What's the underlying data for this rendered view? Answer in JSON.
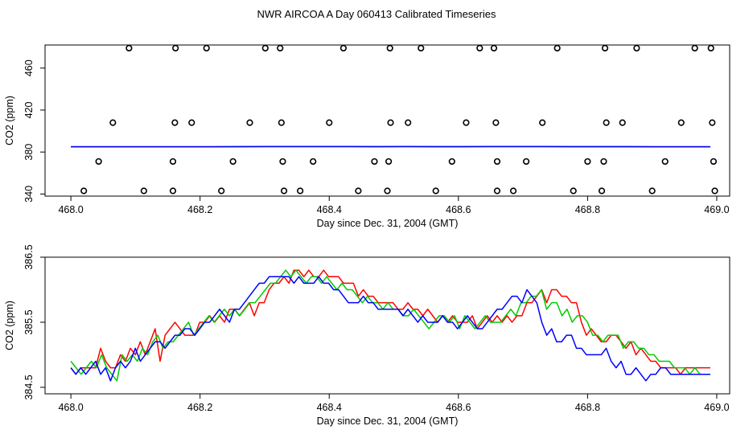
{
  "title": "NWR AIRCOA A  Day 060413  Calibrated Timeseries",
  "chart_data": [
    {
      "type": "scatter",
      "xlabel": "Day since Dec. 31, 2004 (GMT)",
      "ylabel": "CO2 (ppm)",
      "xlim": [
        467.96,
        469.02
      ],
      "ylim": [
        338,
        482
      ],
      "xticks": [
        468.0,
        468.2,
        468.4,
        468.6,
        468.8,
        469.0
      ],
      "xtick_labels": [
        "468.0",
        "468.2",
        "468.4",
        "468.6",
        "468.8",
        "469.0"
      ],
      "yticks": [
        340,
        380,
        420,
        460
      ],
      "ytick_labels": [
        "340",
        "380",
        "420",
        "460"
      ],
      "grid": false,
      "points": [
        [
          468.09,
          479
        ],
        [
          468.162,
          479
        ],
        [
          468.21,
          479
        ],
        [
          468.301,
          479
        ],
        [
          468.324,
          479
        ],
        [
          468.422,
          479
        ],
        [
          468.494,
          479
        ],
        [
          468.542,
          479
        ],
        [
          468.633,
          479
        ],
        [
          468.655,
          479
        ],
        [
          468.753,
          479
        ],
        [
          468.827,
          479
        ],
        [
          468.876,
          479
        ],
        [
          468.966,
          479
        ],
        [
          468.991,
          479
        ],
        [
          468.065,
          408
        ],
        [
          468.161,
          408
        ],
        [
          468.187,
          408
        ],
        [
          468.277,
          408
        ],
        [
          468.326,
          408
        ],
        [
          468.4,
          408
        ],
        [
          468.495,
          408
        ],
        [
          468.522,
          408
        ],
        [
          468.612,
          408
        ],
        [
          468.658,
          408
        ],
        [
          468.73,
          408
        ],
        [
          468.829,
          408
        ],
        [
          468.854,
          408
        ],
        [
          468.945,
          408
        ],
        [
          468.993,
          408
        ],
        [
          468.043,
          371
        ],
        [
          468.158,
          371
        ],
        [
          468.251,
          371
        ],
        [
          468.328,
          371
        ],
        [
          468.375,
          371
        ],
        [
          468.47,
          371
        ],
        [
          468.492,
          371
        ],
        [
          468.59,
          371
        ],
        [
          468.66,
          371
        ],
        [
          468.705,
          371
        ],
        [
          468.8,
          371
        ],
        [
          468.825,
          371
        ],
        [
          468.92,
          371
        ],
        [
          468.995,
          371
        ],
        [
          468.02,
          343
        ],
        [
          468.113,
          343
        ],
        [
          468.158,
          343
        ],
        [
          468.233,
          343
        ],
        [
          468.33,
          343
        ],
        [
          468.355,
          343
        ],
        [
          468.445,
          343
        ],
        [
          468.49,
          343
        ],
        [
          468.565,
          343
        ],
        [
          468.66,
          343
        ],
        [
          468.685,
          343
        ],
        [
          468.778,
          343
        ],
        [
          468.822,
          343
        ],
        [
          468.9,
          343
        ],
        [
          468.997,
          343
        ]
      ],
      "series": [
        {
          "color": "#ff0000",
          "x_start": 468.0,
          "x_end": 468.99,
          "values": [
            385.0,
            385.0,
            385.0,
            385.0,
            385.0,
            385.0,
            385.1,
            385.2,
            385.2,
            385.2,
            385.2,
            385.1,
            385.2,
            385.1,
            385.1,
            385.2,
            385.2,
            385.2,
            385.1,
            385.1,
            385.1,
            385.0,
            385.0,
            385.0
          ]
        },
        {
          "color": "#00cc00",
          "x_start": 468.0,
          "x_end": 468.99,
          "values": [
            385.0,
            385.0,
            385.0,
            385.0,
            385.0,
            385.0,
            385.1,
            385.2,
            385.2,
            385.2,
            385.2,
            385.1,
            385.2,
            385.1,
            385.1,
            385.2,
            385.2,
            385.2,
            385.1,
            385.1,
            385.1,
            385.0,
            385.0,
            385.0
          ]
        },
        {
          "color": "#0000ff",
          "x_start": 468.0,
          "x_end": 468.99,
          "values": [
            385.0,
            385.0,
            385.0,
            385.0,
            385.0,
            385.0,
            385.1,
            385.2,
            385.2,
            385.2,
            385.2,
            385.1,
            385.2,
            385.1,
            385.1,
            385.2,
            385.2,
            385.2,
            385.1,
            385.1,
            385.1,
            385.0,
            385.0,
            385.0
          ]
        }
      ]
    },
    {
      "type": "line",
      "xlabel": "Day since Dec. 31, 2004 (GMT)",
      "ylabel": "CO2 (ppm)",
      "xlim": [
        467.96,
        469.02
      ],
      "ylim": [
        384.4,
        386.5
      ],
      "xticks": [
        468.0,
        468.2,
        468.4,
        468.6,
        468.8,
        469.0
      ],
      "xtick_labels": [
        "468.0",
        "468.2",
        "468.4",
        "468.6",
        "468.8",
        "469.0"
      ],
      "yticks": [
        384.5,
        385.5,
        386.5
      ],
      "ytick_labels": [
        "384.5",
        "385.5",
        "386.5"
      ],
      "grid": false,
      "series": [
        {
          "color": "#ff0000",
          "x_start": 468.0,
          "x_end": 468.99,
          "values": [
            384.8,
            384.7,
            384.8,
            384.8,
            384.8,
            384.8,
            385.1,
            384.9,
            384.8,
            384.8,
            385.0,
            384.9,
            385.1,
            385.0,
            385.2,
            385.0,
            385.2,
            385.4,
            384.9,
            385.3,
            385.4,
            385.5,
            385.4,
            385.3,
            385.3,
            385.3,
            385.5,
            385.5,
            385.6,
            385.5,
            385.6,
            385.5,
            385.7,
            385.7,
            385.6,
            385.7,
            385.8,
            385.6,
            385.8,
            385.8,
            386.0,
            386.1,
            386.1,
            386.2,
            386.1,
            386.3,
            386.3,
            386.2,
            386.3,
            386.2,
            386.2,
            386.3,
            386.2,
            386.2,
            386.2,
            386.1,
            386.1,
            386.1,
            385.9,
            386.0,
            385.9,
            385.9,
            385.8,
            385.8,
            385.8,
            385.8,
            385.7,
            385.7,
            385.8,
            385.7,
            385.7,
            385.6,
            385.7,
            385.6,
            385.5,
            385.6,
            385.5,
            385.6,
            385.5,
            385.5,
            385.5,
            385.6,
            385.4,
            385.5,
            385.6,
            385.5,
            385.6,
            385.5,
            385.6,
            385.5,
            385.6,
            385.6,
            385.8,
            385.8,
            385.9,
            386.0,
            385.8,
            386.0,
            386.0,
            385.9,
            385.9,
            385.8,
            385.8,
            385.5,
            385.3,
            385.4,
            385.3,
            385.2,
            385.2,
            385.3,
            385.3,
            385.2,
            385.1,
            385.2,
            385.0,
            385.1,
            385.0,
            384.9,
            384.9,
            384.8,
            384.8,
            384.8,
            384.8,
            384.7,
            384.8,
            384.8,
            384.8,
            384.8,
            384.8,
            384.8
          ]
        },
        {
          "color": "#00cc00",
          "x_start": 468.0,
          "x_end": 468.99,
          "values": [
            384.9,
            384.8,
            384.7,
            384.8,
            384.9,
            384.8,
            385.0,
            384.8,
            384.7,
            384.6,
            385.0,
            384.9,
            385.0,
            384.9,
            385.1,
            385.0,
            385.2,
            385.3,
            385.1,
            385.2,
            385.2,
            385.3,
            385.4,
            385.5,
            385.3,
            385.4,
            385.5,
            385.6,
            385.5,
            385.6,
            385.7,
            385.6,
            385.7,
            385.6,
            385.7,
            385.8,
            385.8,
            385.9,
            386.0,
            386.1,
            386.1,
            386.2,
            386.3,
            386.2,
            386.3,
            386.2,
            386.1,
            386.2,
            386.2,
            386.1,
            386.2,
            386.1,
            386.0,
            386.1,
            386.0,
            386.0,
            385.9,
            385.8,
            385.9,
            385.8,
            385.8,
            385.7,
            385.8,
            385.7,
            385.7,
            385.6,
            385.6,
            385.7,
            385.6,
            385.5,
            385.4,
            385.5,
            385.6,
            385.6,
            385.5,
            385.6,
            385.4,
            385.6,
            385.5,
            385.4,
            385.5,
            385.6,
            385.5,
            385.5,
            385.5,
            385.6,
            385.7,
            385.6,
            385.8,
            385.8,
            385.9,
            385.9,
            386.0,
            385.7,
            385.8,
            385.8,
            385.6,
            385.7,
            385.5,
            385.6,
            385.6,
            385.5,
            385.3,
            385.3,
            385.2,
            385.3,
            385.3,
            385.3,
            385.1,
            385.2,
            385.2,
            385.1,
            385.1,
            385.0,
            385.0,
            384.9,
            384.9,
            384.9,
            384.8,
            384.8,
            384.8,
            384.7,
            384.8,
            384.7,
            384.7,
            384.7
          ]
        },
        {
          "color": "#0000ff",
          "x_start": 468.0,
          "x_end": 468.99,
          "values": [
            384.8,
            384.7,
            384.8,
            384.7,
            384.8,
            384.9,
            384.7,
            384.8,
            384.6,
            384.8,
            384.9,
            384.8,
            384.9,
            385.1,
            384.9,
            385.0,
            385.1,
            385.2,
            385.2,
            385.1,
            385.2,
            385.3,
            385.3,
            385.4,
            385.4,
            385.3,
            385.4,
            385.5,
            385.5,
            385.6,
            385.7,
            385.6,
            385.5,
            385.7,
            385.7,
            385.8,
            385.9,
            386.0,
            386.1,
            386.1,
            386.2,
            386.2,
            386.2,
            386.2,
            386.2,
            386.1,
            386.2,
            386.1,
            386.1,
            386.1,
            386.2,
            386.1,
            386.1,
            386.0,
            386.0,
            385.9,
            385.8,
            385.8,
            385.8,
            385.9,
            385.8,
            385.8,
            385.7,
            385.7,
            385.7,
            385.7,
            385.7,
            385.6,
            385.7,
            385.6,
            385.5,
            385.6,
            385.5,
            385.5,
            385.5,
            385.6,
            385.5,
            385.5,
            385.4,
            385.5,
            385.6,
            385.5,
            385.4,
            385.4,
            385.5,
            385.6,
            385.7,
            385.7,
            385.8,
            385.9,
            385.9,
            385.8,
            386.0,
            385.9,
            385.8,
            385.5,
            385.3,
            385.4,
            385.2,
            385.2,
            385.3,
            385.3,
            385.1,
            385.1,
            385.0,
            385.0,
            385.0,
            385.0,
            385.1,
            384.9,
            384.8,
            384.9,
            384.7,
            384.7,
            384.8,
            384.7,
            384.6,
            384.7,
            384.7,
            384.8,
            384.8,
            384.7,
            384.7,
            384.7,
            384.7,
            384.7,
            384.7,
            384.7,
            384.7,
            384.7
          ]
        }
      ]
    }
  ]
}
